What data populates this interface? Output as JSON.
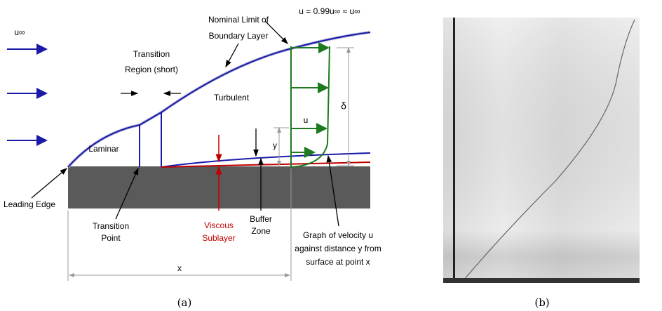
{
  "panel_a": {
    "free_stream": "u∞",
    "nominal_limit": [
      "Nominal Limit of",
      "Boundary Layer"
    ],
    "edge_velocity": "u = 0.99u∞ ≈ u∞",
    "transition_region": [
      "Transition",
      "Region (short)"
    ],
    "turbulent": "Turbulent",
    "delta": "δ",
    "u": "u",
    "y": "y",
    "laminar": "Laminar",
    "leading_edge": "Leading Edge",
    "transition_point": [
      "Transition",
      "Point"
    ],
    "viscous_sublayer": [
      "Viscous",
      "Sublayer"
    ],
    "buffer_zone": [
      "Buffer",
      "Zone"
    ],
    "velocity_graph": [
      "Graph of velocity u",
      "against distance y from",
      "surface at point x"
    ],
    "x": "x",
    "caption": "(a)"
  },
  "panel_b": {
    "caption": "(b)"
  }
}
